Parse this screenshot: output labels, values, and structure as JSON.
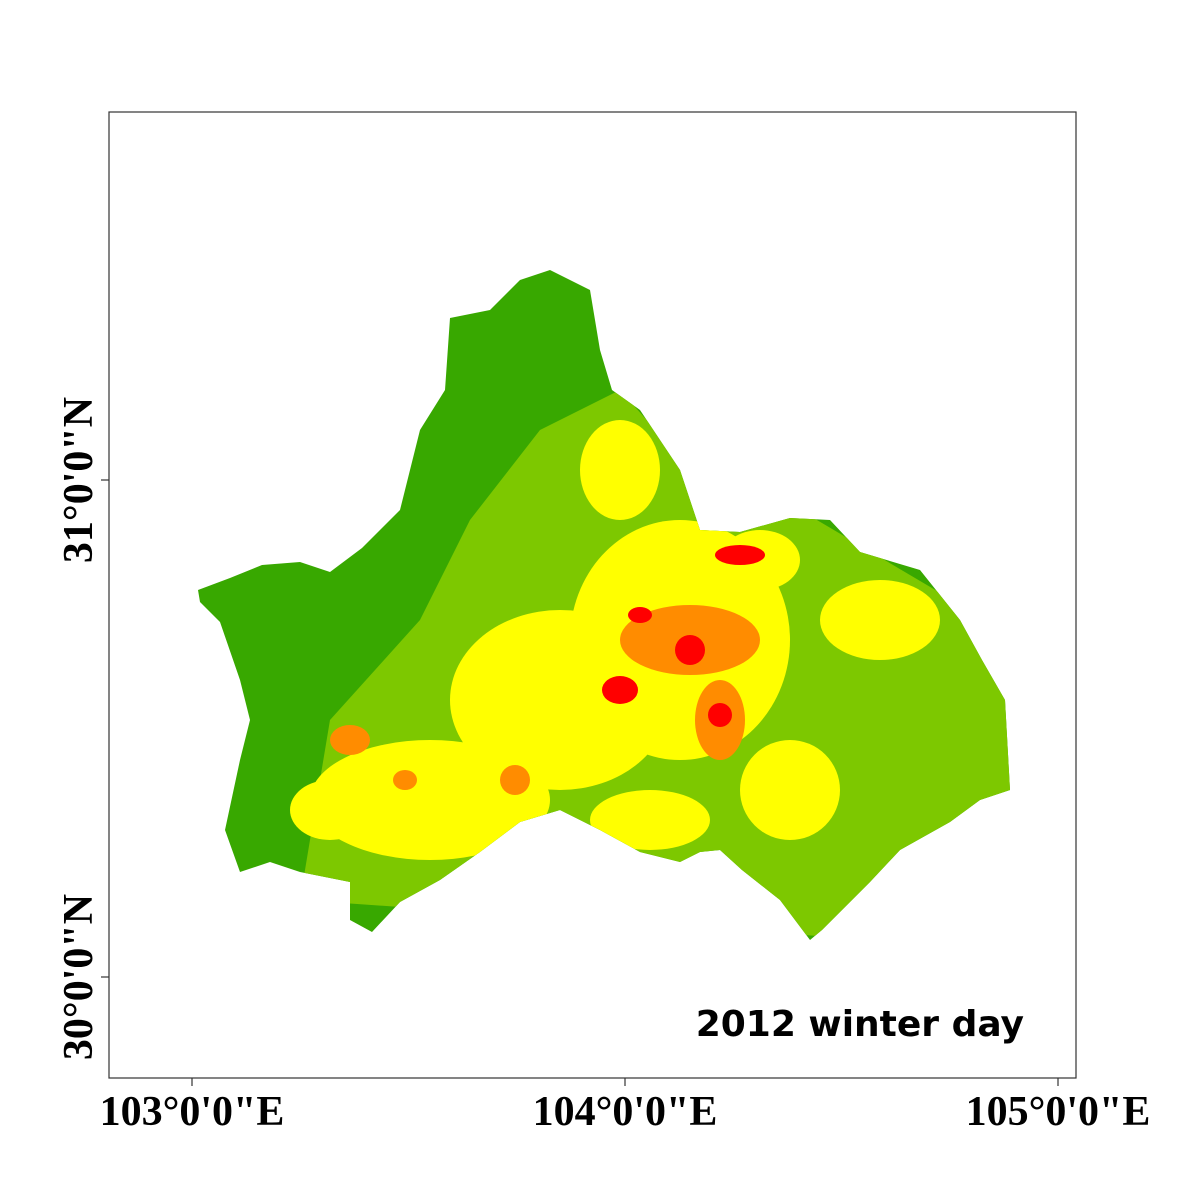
{
  "map": {
    "label": "2012 winter day",
    "longitude_labels": [
      "103°0'0\"E",
      "104°0'0\"E",
      "105°0'0\"E"
    ],
    "latitude_labels": [
      "31°0'0\"N",
      "30°0'0\"N"
    ]
  }
}
